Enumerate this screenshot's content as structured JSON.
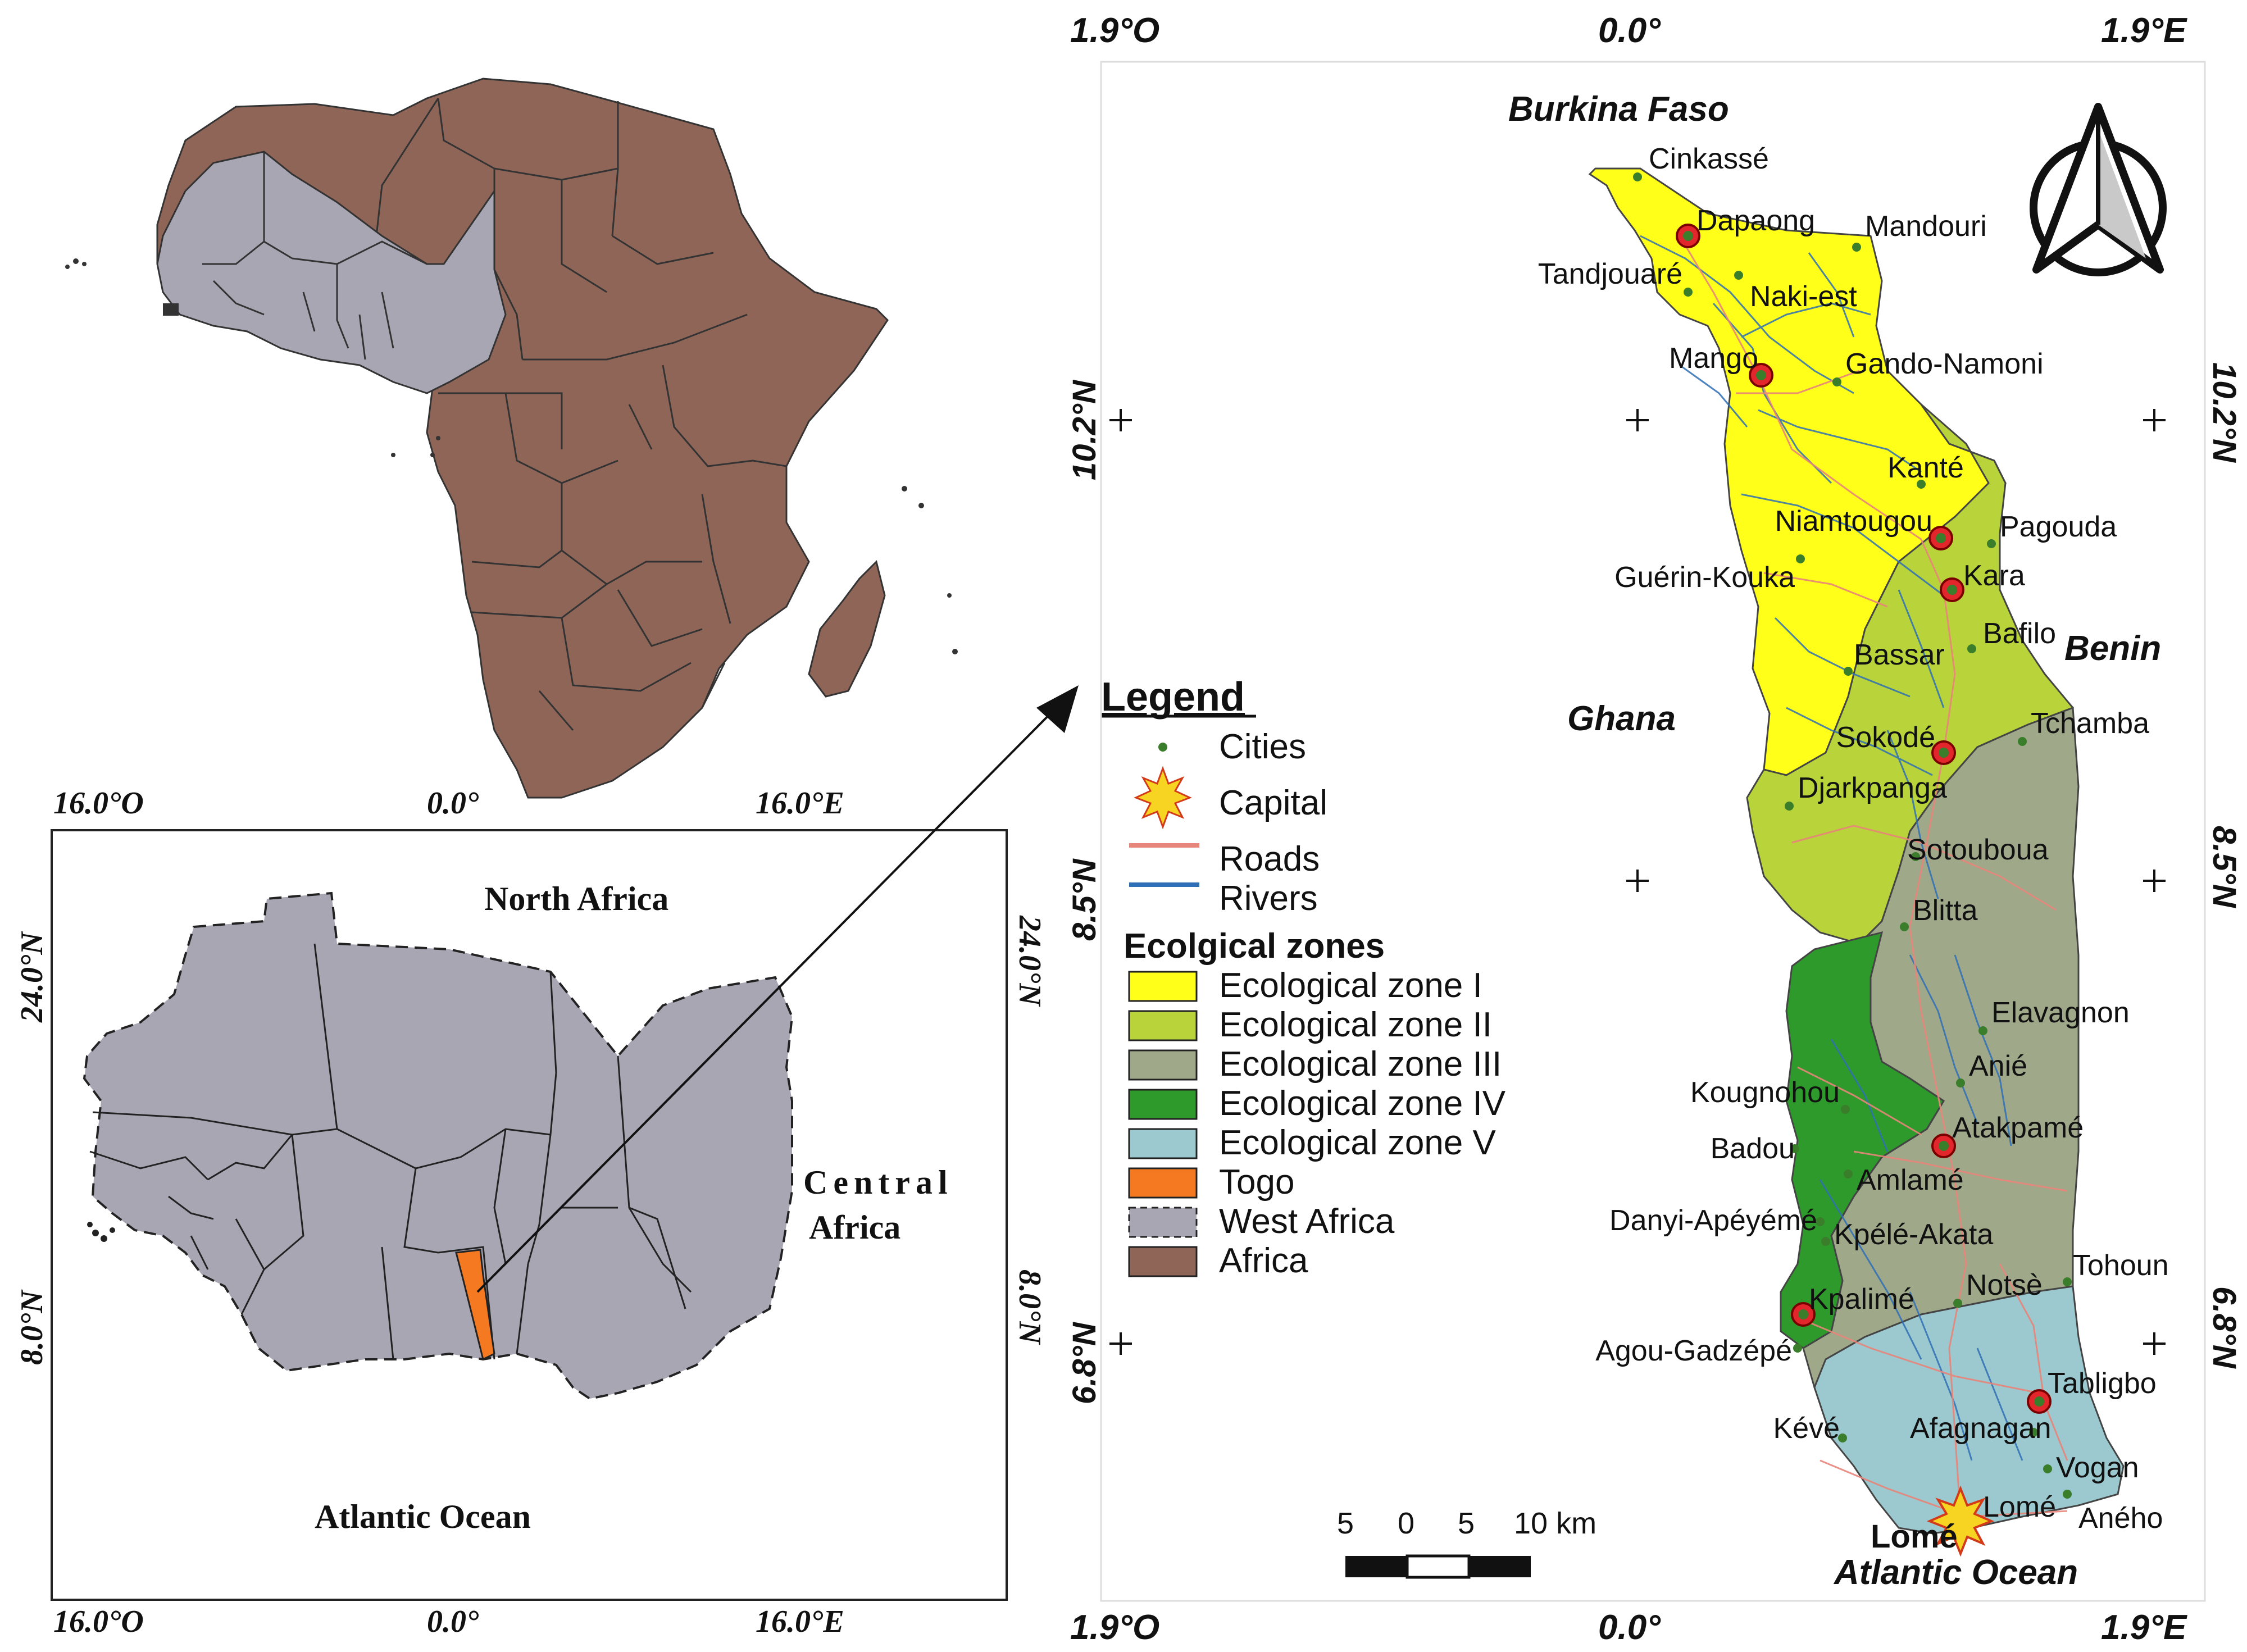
{
  "africa_map": {
    "coords_top": [
      "16.0°O",
      "0.0°",
      "16.0°E"
    ]
  },
  "west_africa_map": {
    "coords_bottom": [
      "16.0°O",
      "0.0°",
      "16.0°E"
    ],
    "lat_left": [
      "24.0°N",
      "8.0°N"
    ],
    "lat_right": [
      "24.0°N",
      "8.0°N"
    ],
    "labels": {
      "north": "North Africa",
      "central_1": "Central",
      "central_2": "Africa",
      "ocean": "Atlantic Ocean"
    }
  },
  "legend": {
    "title": "Legend",
    "items": [
      {
        "label": "Cities",
        "symbol": "dot",
        "color": "#3a7d2a"
      },
      {
        "label": "Capital",
        "symbol": "star",
        "color": "#f7d322"
      },
      {
        "label": "Roads",
        "symbol": "line",
        "color": "#e8857a"
      },
      {
        "label": "Rivers",
        "symbol": "line",
        "color": "#2f6fb5"
      }
    ],
    "zones_title": "Ecolgical zones",
    "zones": [
      {
        "label": "Ecological zone I",
        "color": "#ffff1a"
      },
      {
        "label": "Ecological zone II",
        "color": "#b8d43a"
      },
      {
        "label": "Ecological zone III",
        "color": "#9fa98a"
      },
      {
        "label": "Ecological zone IV",
        "color": "#2e9a2b"
      },
      {
        "label": "Ecological zone V",
        "color": "#9cc9cf"
      },
      {
        "label": "Togo",
        "color": "#f47920"
      },
      {
        "label": "West Africa",
        "color": "#a9a6b4"
      },
      {
        "label": "Africa",
        "color": "#8f6558"
      }
    ]
  },
  "togo_map": {
    "coords_top": [
      "1.9°O",
      "0.0°",
      "1.9°E"
    ],
    "coords_bottom": [
      "1.9°O",
      "0.0°",
      "1.9°E"
    ],
    "lat_left": [
      "10.2°N",
      "8.5°N",
      "6.8°N"
    ],
    "lat_right": [
      "10.2°N",
      "8.5°N",
      "6.8°N"
    ],
    "countries": {
      "burkina": "Burkina Faso",
      "ghana": "Ghana",
      "benin": "Benin",
      "ocean": "Atlantic Ocean",
      "capital": "Lomé"
    },
    "cities": [
      {
        "name": "Cinkassé",
        "type": "city"
      },
      {
        "name": "Dapaong",
        "type": "major"
      },
      {
        "name": "Mandouri",
        "type": "city"
      },
      {
        "name": "Tandjouaré",
        "type": "city"
      },
      {
        "name": "Naki-est",
        "type": "city"
      },
      {
        "name": "Mango",
        "type": "major"
      },
      {
        "name": "Gando-Namoni",
        "type": "city"
      },
      {
        "name": "Kanté",
        "type": "city"
      },
      {
        "name": "Niamtougou",
        "type": "major"
      },
      {
        "name": "Pagouda",
        "type": "city"
      },
      {
        "name": "Kara",
        "type": "major"
      },
      {
        "name": "Guérin-Kouka",
        "type": "city"
      },
      {
        "name": "Bafilo",
        "type": "city"
      },
      {
        "name": "Bassar",
        "type": "city"
      },
      {
        "name": "Tchamba",
        "type": "city"
      },
      {
        "name": "Sokodé",
        "type": "major"
      },
      {
        "name": "Djarkpanga",
        "type": "city"
      },
      {
        "name": "Sotouboua",
        "type": "city"
      },
      {
        "name": "Blitta",
        "type": "city"
      },
      {
        "name": "Elavagnon",
        "type": "city"
      },
      {
        "name": "Anié",
        "type": "city"
      },
      {
        "name": "Kougnohou",
        "type": "city"
      },
      {
        "name": "Atakpamé",
        "type": "major"
      },
      {
        "name": "Badou",
        "type": "city"
      },
      {
        "name": "Amlamé",
        "type": "city"
      },
      {
        "name": "Danyi-Apéyémé",
        "type": "city"
      },
      {
        "name": "Kpélé-Akata",
        "type": "city"
      },
      {
        "name": "Tohoun",
        "type": "city"
      },
      {
        "name": "Notsè",
        "type": "city"
      },
      {
        "name": "Kpalimé",
        "type": "major"
      },
      {
        "name": "Agou-Gadzépé",
        "type": "city"
      },
      {
        "name": "Tabligbo",
        "type": "major"
      },
      {
        "name": "Kévé",
        "type": "city"
      },
      {
        "name": "Afagnagan",
        "type": "city"
      },
      {
        "name": "Vogan",
        "type": "city"
      },
      {
        "name": "Lomé",
        "type": "capital"
      },
      {
        "name": "Aného",
        "type": "city"
      }
    ],
    "scale_bar": {
      "labels": [
        "5",
        "0",
        "5",
        "10 km"
      ]
    }
  }
}
